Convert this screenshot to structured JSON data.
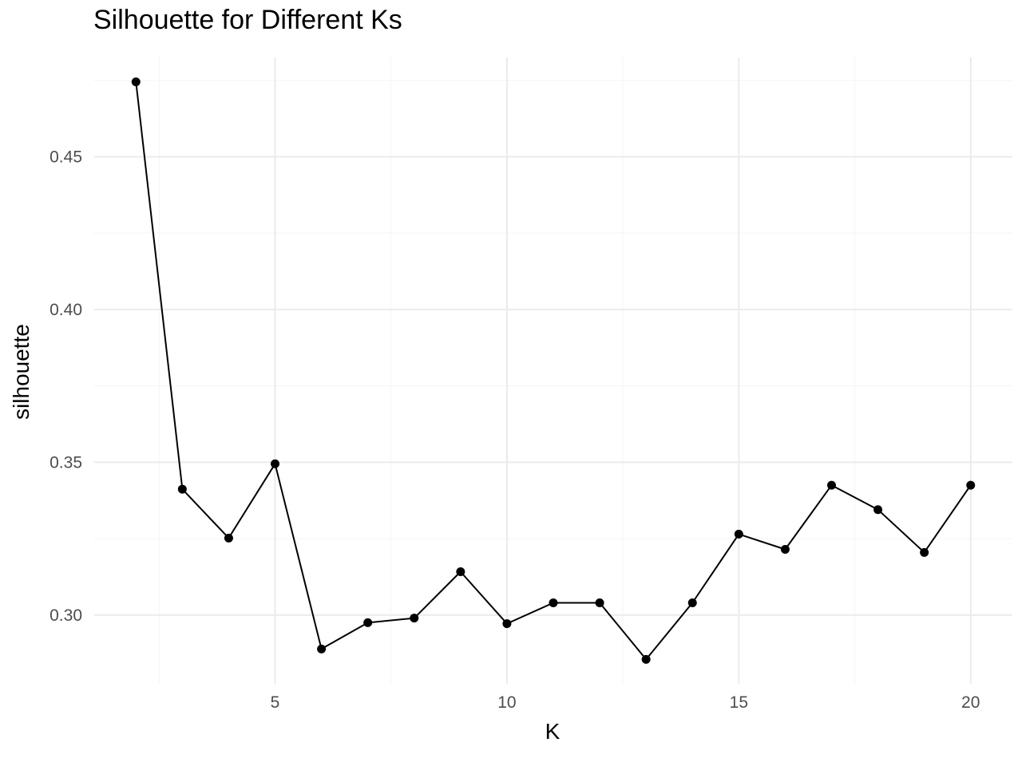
{
  "chart_data": {
    "type": "line",
    "title": "Silhouette for Different Ks",
    "xlabel": "K",
    "ylabel": "silhouette",
    "x_ticks": [
      5,
      10,
      15,
      20
    ],
    "y_ticks": [
      "0.30",
      "0.35",
      "0.40",
      "0.45"
    ],
    "xlim": [
      1.1,
      20.9
    ],
    "ylim": [
      0.2775,
      0.4825
    ],
    "grid": true,
    "legend": "none",
    "series": [
      {
        "x": [
          2,
          3,
          4,
          5,
          6,
          7,
          8,
          9,
          10,
          11,
          12,
          13,
          14,
          15,
          16,
          17,
          18,
          19,
          20
        ],
        "values": [
          0.4745,
          0.3412,
          0.3252,
          0.3495,
          0.2889,
          0.2975,
          0.299,
          0.3142,
          0.2972,
          0.304,
          0.304,
          0.2855,
          0.304,
          0.3265,
          0.3215,
          0.3425,
          0.3345,
          0.3205,
          0.3425
        ]
      }
    ],
    "colors": {
      "line": "#000000",
      "points": "#000000",
      "grid_major": "#ebebeb",
      "grid_minor": "#f5f5f5"
    }
  }
}
